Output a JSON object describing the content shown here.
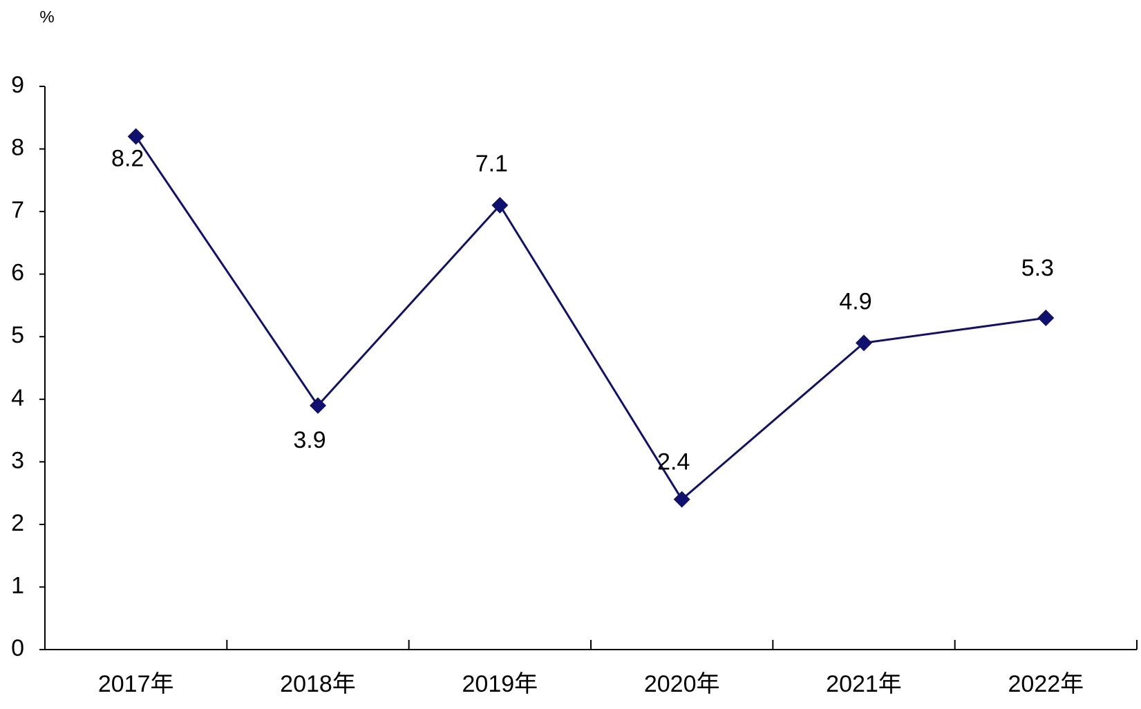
{
  "chart_data": {
    "type": "line",
    "y_label": "%",
    "categories": [
      "2017年",
      "2018年",
      "2019年",
      "2020年",
      "2021年",
      "2022年"
    ],
    "series": [
      {
        "color": "#10106e",
        "values": [
          8.2,
          3.9,
          7.1,
          2.4,
          4.9,
          5.3
        ]
      }
    ],
    "ylim": [
      0,
      9
    ],
    "yticks": [
      0,
      1,
      2,
      3,
      4,
      5,
      6,
      7,
      8,
      9
    ],
    "grid": false
  }
}
